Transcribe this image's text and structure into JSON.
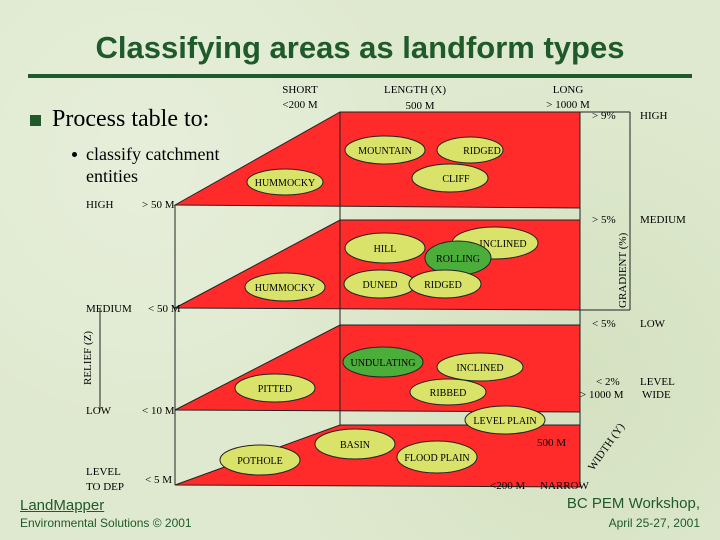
{
  "title": "Classifying areas as landform types",
  "bullets": {
    "main": "Process table to:",
    "sub_line1": "classify catchment",
    "sub_line2": "entities"
  },
  "length_axis": {
    "heading": "LENGTH (X)",
    "short": "SHORT",
    "short_value": "<200 M",
    "mid_value": "500 M",
    "long": "LONG",
    "long_value": "> 1000 M"
  },
  "gradient_axis": {
    "title": "GRADIENT (%)",
    "high": "HIGH",
    "high_value": "> 9%",
    "medium": "MEDIUM",
    "medium_value": "> 5%",
    "low": "LOW",
    "low_value": "< 5%",
    "level": "LEVEL",
    "level_value": "< 2%"
  },
  "relief_axis": {
    "title": "RELIEF (Z)",
    "high": "HIGH",
    "high_value": "> 50 M",
    "medium": "MEDIUM",
    "medium_value": "< 50 M",
    "low": "LOW",
    "low_value": "< 10 M",
    "level_line1": "LEVEL",
    "level_line2": "TO DEP",
    "level_value": "< 5 M"
  },
  "width_axis": {
    "title": "WIDTH (Y)",
    "wide_value": "> 1000 M",
    "wide": "WIDE",
    "mid_value": "500 M",
    "narrow_value": "<200 M",
    "narrow": "NARROW"
  },
  "landforms": {
    "mountain": "MOUNTAIN",
    "ridged_top": "RIDGED",
    "cliff": "CLIFF",
    "hummocky_top": "HUMMOCKY",
    "hill": "HILL",
    "inclined_mid": "INCLINED",
    "rolling": "ROLLING",
    "hummocky_mid": "HUMMOCKY",
    "duned": "DUNED",
    "ridged_mid": "RIDGED",
    "undulating": "UNDULATING",
    "inclined_low": "INCLINED",
    "pitted": "PITTED",
    "ribbed": "RIBBED",
    "level_plain": "LEVEL PLAIN",
    "basin": "BASIN",
    "pothole": "POTHOLE",
    "flood_plain": "FLOOD PLAIN"
  },
  "footer": {
    "brand": "LandMapper",
    "copyright": "Environmental Solutions © 2001",
    "event": "BC PEM Workshop,",
    "date": "April 25-27, 2001"
  },
  "colors": {
    "plane": "#ff2a2a",
    "ellipse": "#d9e36a",
    "ellipse_highlight": "#4cae3a",
    "title": "#1e5a2a"
  }
}
